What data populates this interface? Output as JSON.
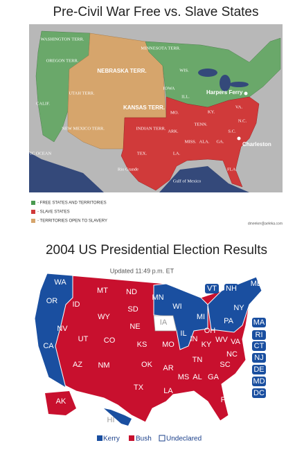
{
  "maps": [
    {
      "title": "Pre-Civil War Free vs. Slave States",
      "labels": [
        "WASHINGTON TERR.",
        "OREGON TERR.",
        "MINNESOTA TERR.",
        "NEBRASKA TERR.",
        "UTAH TERR.",
        "KANSAS TERR.",
        "CALIF.",
        "NEW MEXICO TERR.",
        "INDIAN TERR.",
        "TEX.",
        "IOWA",
        "WIS.",
        "MO.",
        "ARK.",
        "LA.",
        "MISS.",
        "ALA.",
        "GA.",
        "TENN.",
        "KY.",
        "VA.",
        "N.C.",
        "S.C.",
        "FLA.",
        "ILL.",
        "PACIFIC OCEAN",
        "Gulf of Mexico",
        "Rio Grande"
      ],
      "cities": [
        "Harpers Ferry",
        "Charleston"
      ],
      "legend": [
        "- FREE STATES AND TERRITORIES",
        "- SLAVE STATES",
        "- TERRITORIES OPEN TO SLAVERY"
      ],
      "credit": "dmeeker@aeleka.com"
    },
    {
      "title": "2004 US Presidential Election Results",
      "updated": "Updated 11:49 p.m. ET",
      "states": [
        "WA",
        "OR",
        "CA",
        "NV",
        "ID",
        "MT",
        "WY",
        "UT",
        "AZ",
        "CO",
        "NM",
        "ND",
        "SD",
        "NE",
        "KS",
        "OK",
        "TX",
        "MN",
        "IA",
        "MO",
        "AR",
        "LA",
        "WI",
        "IL",
        "MI",
        "IN",
        "OH",
        "KY",
        "TN",
        "MS",
        "AL",
        "GA",
        "FL",
        "SC",
        "NC",
        "VA",
        "WV",
        "PA",
        "NY",
        "VT",
        "NH",
        "ME",
        "MA",
        "RI",
        "CT",
        "NJ",
        "DE",
        "MD",
        "DC",
        "AK",
        "HI"
      ],
      "legend": [
        "Kerry",
        "Bush",
        "Undeclared"
      ]
    }
  ]
}
